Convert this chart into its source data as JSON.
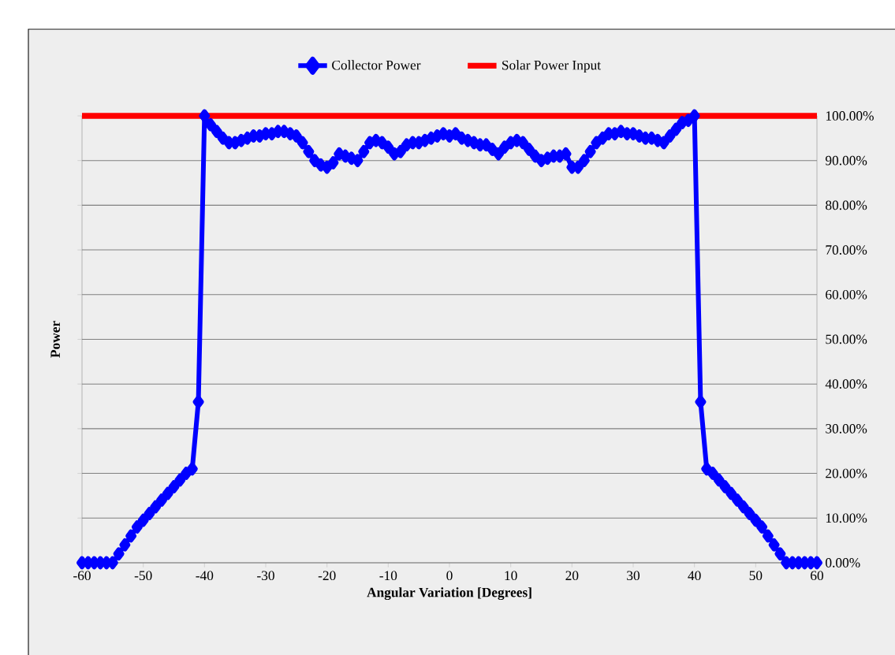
{
  "chart_data": {
    "type": "line",
    "xlabel": "Angular Variation [Degrees]",
    "ylabel": "Power",
    "xlim": [
      -60,
      60
    ],
    "xticks": [
      -60,
      -50,
      -40,
      -30,
      -20,
      -10,
      0,
      10,
      20,
      30,
      40,
      50,
      60
    ],
    "ylim": [
      0,
      100
    ],
    "yticks": [
      {
        "value": 0,
        "label": "0.00%"
      },
      {
        "value": 10,
        "label": "10.00%"
      },
      {
        "value": 20,
        "label": "20.00%"
      },
      {
        "value": 30,
        "label": "30.00%"
      },
      {
        "value": 40,
        "label": "40.00%"
      },
      {
        "value": 50,
        "label": "50.00%"
      },
      {
        "value": 60,
        "label": "60.00%"
      },
      {
        "value": 70,
        "label": "70.00%"
      },
      {
        "value": 80,
        "label": "80.00%"
      },
      {
        "value": 90,
        "label": "90.00%"
      },
      {
        "value": 100,
        "label": "100.00%"
      }
    ],
    "grid": "y",
    "legend": "top",
    "series": [
      {
        "name": "Collector Power",
        "color": "#0000ff",
        "marker": "diamond",
        "x": [
          -60,
          -59,
          -58,
          -57,
          -56,
          -55,
          -54,
          -53,
          -52,
          -51,
          -50,
          -49,
          -48,
          -47,
          -46,
          -45,
          -44,
          -43,
          -42,
          -41,
          -40,
          -39,
          -38,
          -37,
          -36,
          -35,
          -34,
          -33,
          -32,
          -31,
          -30,
          -29,
          -28,
          -27,
          -26,
          -25,
          -24,
          -23,
          -22,
          -21,
          -20,
          -19,
          -18,
          -17,
          -16,
          -15,
          -14,
          -13,
          -12,
          -11,
          -10,
          -9,
          -8,
          -7,
          -6,
          -5,
          -4,
          -3,
          -2,
          -1,
          0,
          1,
          2,
          3,
          4,
          5,
          6,
          7,
          8,
          9,
          10,
          11,
          12,
          13,
          14,
          15,
          16,
          17,
          18,
          19,
          20,
          21,
          22,
          23,
          24,
          25,
          26,
          27,
          28,
          29,
          30,
          31,
          32,
          33,
          34,
          35,
          36,
          37,
          38,
          39,
          40,
          41,
          42,
          43,
          44,
          45,
          46,
          47,
          48,
          49,
          50,
          51,
          52,
          53,
          54,
          55,
          56,
          57,
          58,
          59,
          60
        ],
        "values": [
          0,
          0,
          0,
          0,
          0,
          0,
          2,
          4,
          6,
          8,
          9.5,
          11,
          12.5,
          14,
          15.5,
          17,
          18.5,
          20,
          21,
          36,
          100,
          98,
          96.5,
          95,
          94,
          94,
          94.5,
          95,
          95.5,
          95.5,
          96,
          96,
          96.5,
          96.5,
          96,
          95.5,
          94,
          92,
          90,
          89,
          88.5,
          89.5,
          91.5,
          91,
          90.5,
          90,
          92,
          94,
          94.5,
          94,
          93,
          91.5,
          92,
          93.5,
          94,
          94,
          94.5,
          95,
          95.5,
          96,
          95.5,
          96,
          95,
          94.5,
          94,
          93.5,
          93.5,
          92.5,
          91.5,
          93,
          94,
          94.5,
          94,
          92.5,
          91,
          90,
          90.5,
          91,
          91,
          91.5,
          88.5,
          88.5,
          90,
          92,
          94,
          95,
          96,
          96,
          96.5,
          96,
          96,
          95.5,
          95,
          95,
          94.5,
          94,
          95.5,
          97,
          98.5,
          99,
          100,
          36,
          21,
          20,
          18.5,
          17,
          15.5,
          14,
          12.5,
          11,
          9.5,
          8,
          6,
          4,
          2,
          0,
          0,
          0,
          0,
          0,
          0
        ]
      },
      {
        "name": "Solar Power Input",
        "color": "#ff0000",
        "marker": "none",
        "x": [
          -60,
          60
        ],
        "values": [
          100,
          100
        ]
      }
    ]
  }
}
